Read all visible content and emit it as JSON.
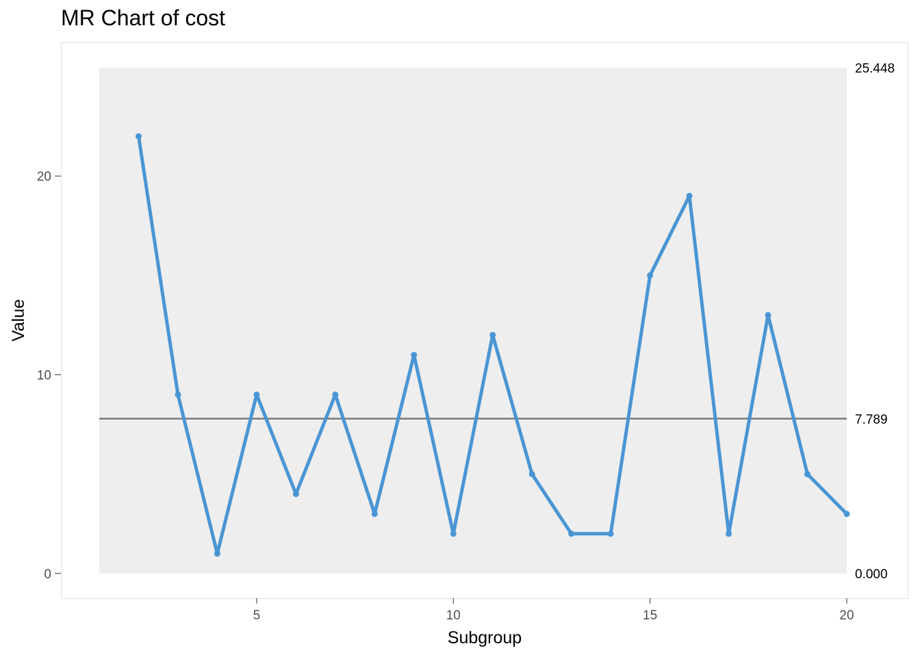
{
  "chart_data": {
    "type": "line",
    "title": "MR Chart of cost",
    "xlabel": "Subgroup",
    "ylabel": "Value",
    "x": [
      2,
      3,
      4,
      5,
      6,
      7,
      8,
      9,
      10,
      11,
      12,
      13,
      14,
      15,
      16,
      17,
      18,
      19,
      20
    ],
    "values": [
      22,
      9,
      1,
      9,
      4,
      9,
      3,
      11,
      2,
      12,
      5,
      2,
      2,
      15,
      19,
      2,
      13,
      5,
      3
    ],
    "xlim": [
      1,
      20
    ],
    "ylim": [
      0,
      25.448
    ],
    "x_ticks": [
      5,
      10,
      15,
      20
    ],
    "y_ticks": [
      0,
      10,
      20
    ],
    "limits": {
      "ucl": 25.448,
      "center": 7.789,
      "lcl": 0.0,
      "ucl_label": "25.448",
      "center_label": "7.789",
      "lcl_label": "0.000"
    },
    "grid": false,
    "legend": "none",
    "colors": {
      "series": "#4a95d4",
      "center_line": "#7a7a7a",
      "panel_bg": "#eeeeee",
      "frame": "#e0e0e0"
    }
  }
}
